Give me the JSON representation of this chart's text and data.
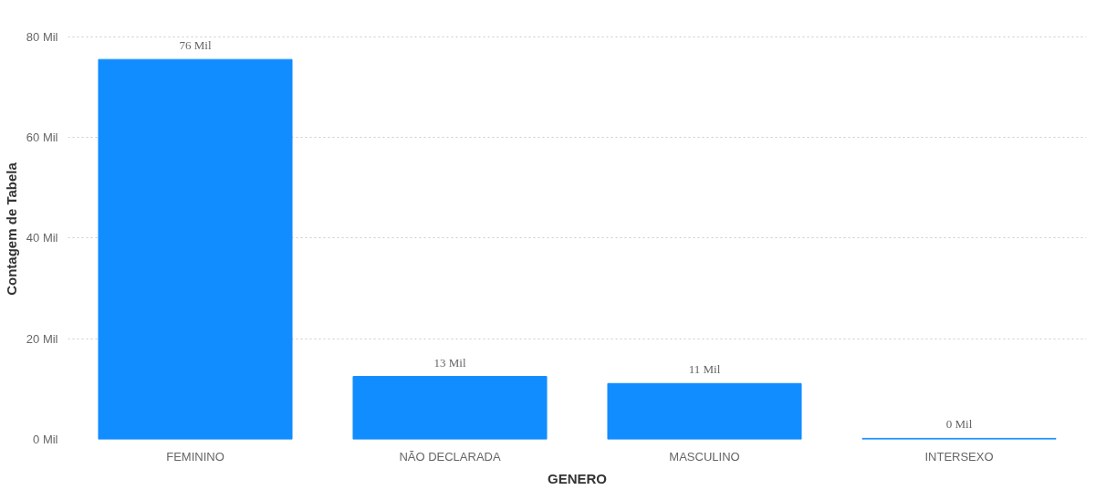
{
  "chart_data": {
    "type": "bar",
    "xlabel": "GENERO",
    "ylabel": "Contagem de Tabela",
    "categories": [
      "FEMININO",
      "NÃO DECLARADA",
      "MASCULINO",
      "INTERSEXO"
    ],
    "values": [
      75.5,
      12.5,
      11.1,
      0.2
    ],
    "value_labels": [
      "76 Mil",
      "13 Mil",
      "11 Mil",
      "0 Mil"
    ],
    "color": "#118dff",
    "ylim": [
      0,
      80
    ],
    "yticks": [
      {
        "value": 0,
        "label": "0 Mil"
      },
      {
        "value": 20,
        "label": "20 Mil"
      },
      {
        "value": 40,
        "label": "40 Mil"
      },
      {
        "value": 60,
        "label": "60 Mil"
      },
      {
        "value": 80,
        "label": "80 Mil"
      }
    ],
    "grid": "y"
  }
}
